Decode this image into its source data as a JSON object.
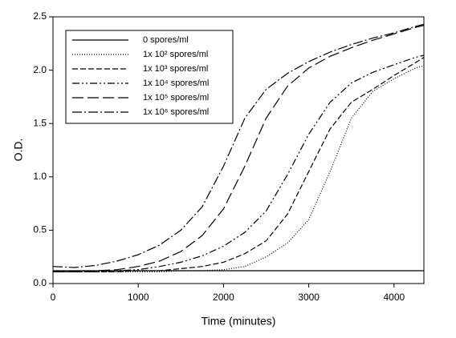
{
  "chart_data": {
    "type": "line",
    "x_label": "Time (minutes)",
    "y_label": "O.D.",
    "x": [
      0,
      250,
      500,
      750,
      1000,
      1250,
      1500,
      1750,
      2000,
      2250,
      2500,
      2750,
      3000,
      3250,
      3500,
      3750,
      4000,
      4250,
      4350
    ],
    "series": [
      {
        "name": "0 spores/ml",
        "color": "#000000",
        "dash": "none",
        "values": [
          0.12,
          0.12,
          0.12,
          0.12,
          0.12,
          0.12,
          0.12,
          0.12,
          0.12,
          0.12,
          0.12,
          0.12,
          0.12,
          0.12,
          0.12,
          0.12,
          0.12,
          0.12,
          0.12
        ]
      },
      {
        "name": "1x 10² spores/ml",
        "color": "#000000",
        "dash": "1,2",
        "values": [
          0.11,
          0.11,
          0.11,
          0.11,
          0.11,
          0.11,
          0.12,
          0.12,
          0.13,
          0.16,
          0.25,
          0.38,
          0.6,
          1.05,
          1.55,
          1.8,
          1.92,
          2.02,
          2.04
        ]
      },
      {
        "name": "1x 10³ spores/ml",
        "color": "#000000",
        "dash": "7,3",
        "values": [
          0.11,
          0.11,
          0.11,
          0.11,
          0.12,
          0.12,
          0.14,
          0.16,
          0.2,
          0.28,
          0.4,
          0.65,
          1.05,
          1.45,
          1.7,
          1.82,
          1.95,
          2.07,
          2.12
        ]
      },
      {
        "name": "1x 10⁴ spores/ml",
        "color": "#000000",
        "dash": "9,3,2,3,2,3",
        "values": [
          0.11,
          0.11,
          0.11,
          0.12,
          0.13,
          0.16,
          0.2,
          0.26,
          0.35,
          0.48,
          0.68,
          1.02,
          1.4,
          1.7,
          1.88,
          1.98,
          2.05,
          2.12,
          2.14
        ]
      },
      {
        "name": "1x 10⁵ spores/ml",
        "color": "#000000",
        "dash": "14,5",
        "values": [
          0.11,
          0.11,
          0.12,
          0.13,
          0.16,
          0.21,
          0.3,
          0.45,
          0.7,
          1.1,
          1.55,
          1.85,
          2.02,
          2.13,
          2.21,
          2.28,
          2.34,
          2.4,
          2.42
        ]
      },
      {
        "name": "1x 10⁶ spores/ml",
        "color": "#000000",
        "dash": "12,3,2,3",
        "values": [
          0.16,
          0.15,
          0.17,
          0.21,
          0.27,
          0.36,
          0.5,
          0.72,
          1.1,
          1.55,
          1.82,
          1.97,
          2.08,
          2.17,
          2.24,
          2.3,
          2.35,
          2.41,
          2.43
        ]
      }
    ],
    "xlim": [
      0,
      4350
    ],
    "xticks": [
      0,
      1000,
      2000,
      3000,
      4000
    ],
    "ylim": [
      0,
      2.5
    ],
    "yticks": [
      {
        "value": 0,
        "label": "0.0"
      },
      0.5,
      {
        "value": 1,
        "label": "1.0"
      },
      1.5,
      {
        "value": 2,
        "label": "2.0"
      },
      2.5
    ],
    "grid": false,
    "legend": "upper left"
  }
}
